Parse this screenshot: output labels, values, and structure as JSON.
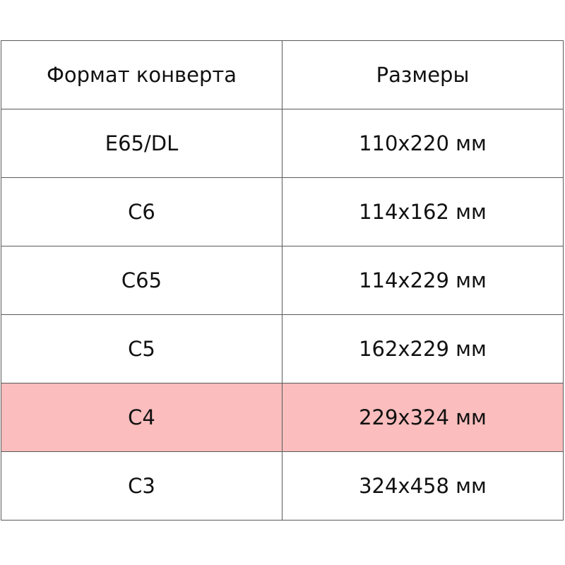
{
  "table": {
    "headers": [
      "Формат конверта",
      "Размеры"
    ],
    "rows": [
      {
        "format": "E65/DL",
        "size": "110x220 мм",
        "highlighted": false
      },
      {
        "format": "C6",
        "size": "114x162 мм",
        "highlighted": false
      },
      {
        "format": "C65",
        "size": "114x229 мм",
        "highlighted": false
      },
      {
        "format": "C5",
        "size": "162x229 мм",
        "highlighted": false
      },
      {
        "format": "C4",
        "size": "229x324 мм",
        "highlighted": true
      },
      {
        "format": "C3",
        "size": "324x458 мм",
        "highlighted": false
      }
    ],
    "highlight_color": "#fbbdbd"
  }
}
